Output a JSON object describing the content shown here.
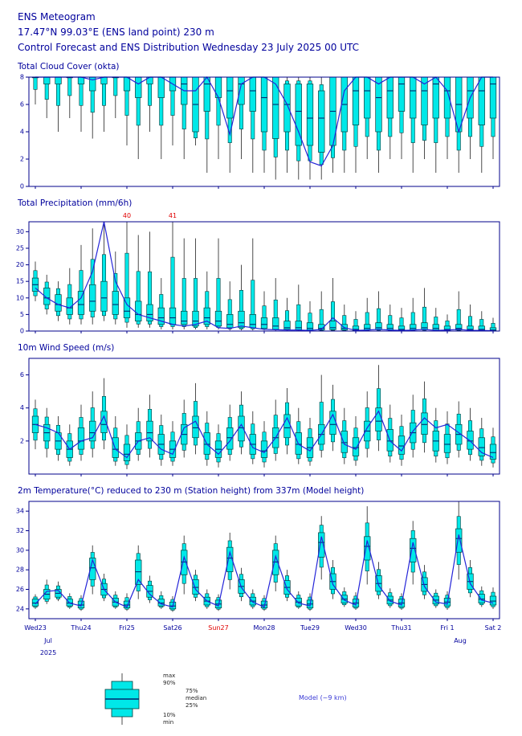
{
  "header": {
    "title": "ENS Meteogram",
    "location": "17.47°N 99.03°E (ENS land point) 230 m",
    "subtitle": "Control Forecast and ENS Distribution Wednesday 23 July 2025 00 UTC"
  },
  "x_axis": {
    "tick_labels": [
      "Wed23",
      "Thu24",
      "Fri25",
      "Sat26",
      "Sun27",
      "Mon28",
      "Tue29",
      "Wed30",
      "Thu31",
      "Fri 1",
      "Sat 2"
    ],
    "tick_steps": [
      0,
      4,
      8,
      12,
      16,
      20,
      24,
      28,
      32,
      36,
      40
    ],
    "red_labels": [
      "Sun27"
    ],
    "month_labels": [
      {
        "text": "Jul",
        "step": 0
      },
      {
        "text": "Aug",
        "step": 36
      }
    ],
    "year_label": "2025"
  },
  "legend": {
    "labels": {
      "max": "max",
      "p90": "90%",
      "p75": "75%",
      "median": "median",
      "p25": "25%",
      "p10": "10%",
      "min": "min"
    },
    "model_label": "Model (~9 km)"
  },
  "colors": {
    "title_text": "#00009c",
    "frame": "#00008b",
    "box_fill": "#00e8e8",
    "box_stroke": "#063e3e",
    "median": "#00286e",
    "whisker": "#4d4d4d",
    "control_line": "#2424d8",
    "annotation": "#e00000",
    "model_label": "#3a3ad6"
  },
  "chart_data": [
    {
      "type": "box-line",
      "title": "Total Cloud Cover (okta)",
      "ylabel": "okta",
      "ylim": [
        0,
        8
      ],
      "yticks": [
        0,
        2,
        4,
        6,
        8
      ],
      "top_margin": 6,
      "boxes": [
        [
          6,
          8,
          8,
          8,
          8
        ],
        [
          5,
          7.5,
          8,
          8,
          8
        ],
        [
          4,
          7.5,
          8,
          8,
          8
        ],
        [
          5,
          8,
          8,
          8,
          8
        ],
        [
          4,
          7.5,
          8,
          8,
          8
        ],
        [
          3.5,
          7,
          8,
          8,
          8
        ],
        [
          4,
          7.5,
          8,
          8,
          8
        ],
        [
          5,
          8,
          8,
          8,
          8
        ],
        [
          3,
          7,
          8,
          8,
          8
        ],
        [
          2,
          6.5,
          8,
          8,
          8
        ],
        [
          4,
          7.5,
          8,
          8,
          8
        ],
        [
          2,
          6.5,
          8,
          8,
          8
        ],
        [
          3,
          7,
          8,
          8,
          8
        ],
        [
          2,
          6,
          7.5,
          8,
          8
        ],
        [
          3,
          4,
          6,
          8,
          8
        ],
        [
          1,
          5.5,
          7.5,
          8,
          8
        ],
        [
          2,
          6.5,
          8,
          8,
          8
        ],
        [
          1,
          5,
          7,
          8,
          8
        ],
        [
          2,
          6,
          7.5,
          8,
          8
        ],
        [
          1,
          5.5,
          7,
          8,
          8
        ],
        [
          1,
          4,
          6.5,
          8,
          8
        ],
        [
          0.5,
          3.5,
          6,
          8,
          8
        ],
        [
          1,
          4,
          6,
          7.5,
          8
        ],
        [
          0.5,
          3,
          5.5,
          7.5,
          8
        ],
        [
          0.5,
          3,
          5,
          7.5,
          8
        ],
        [
          0.5,
          2.5,
          5,
          7,
          8
        ],
        [
          1,
          3,
          5.5,
          8,
          8
        ],
        [
          1,
          4,
          6,
          8,
          8
        ],
        [
          1,
          4.5,
          7,
          8,
          8
        ],
        [
          2,
          5,
          7,
          8,
          8
        ],
        [
          1,
          4,
          6.5,
          8,
          8
        ],
        [
          2,
          5,
          7,
          8,
          8
        ],
        [
          2,
          5.5,
          7.5,
          8,
          8
        ],
        [
          1,
          5,
          7,
          8,
          8
        ],
        [
          2,
          4.5,
          7,
          8,
          8
        ],
        [
          1,
          5,
          7.5,
          8,
          8
        ],
        [
          2,
          5,
          7,
          8,
          8
        ],
        [
          1,
          4,
          6,
          8,
          8
        ],
        [
          2,
          5,
          7,
          8,
          8
        ],
        [
          1,
          4.5,
          7,
          8,
          8
        ],
        [
          2,
          5,
          7.5,
          8,
          8
        ]
      ],
      "control": [
        8,
        8,
        8,
        8,
        8,
        7.8,
        8,
        8,
        8,
        7.5,
        8,
        8,
        7.5,
        7,
        7,
        8,
        6.5,
        3.8,
        7.5,
        8,
        8,
        7.5,
        6,
        4,
        1.8,
        1.5,
        3,
        7,
        8,
        8,
        7.5,
        8,
        8,
        8,
        7.5,
        8,
        7,
        4,
        6.5,
        8,
        8
      ],
      "annotations": []
    },
    {
      "type": "box-line",
      "title": "Total Precipitation (mm/6h)",
      "ylabel": "mm/6h",
      "ylim": [
        0,
        33
      ],
      "yticks": [
        0,
        5,
        10,
        15,
        20,
        25,
        30
      ],
      "top_margin": 16,
      "boxes": [
        [
          9,
          12,
          14,
          16,
          21
        ],
        [
          5,
          8,
          10,
          13,
          17
        ],
        [
          3,
          6,
          8,
          11,
          15
        ],
        [
          2,
          5,
          7,
          10,
          19
        ],
        [
          2,
          5,
          8,
          12,
          26
        ],
        [
          2,
          6,
          9,
          14,
          31
        ],
        [
          3,
          6,
          10,
          15,
          33
        ],
        [
          2,
          5,
          8,
          12,
          24
        ],
        [
          1,
          4,
          6,
          10,
          40
        ],
        [
          1,
          3,
          5,
          9,
          29
        ],
        [
          1,
          3,
          5,
          8,
          30
        ],
        [
          0.5,
          2,
          4,
          7,
          16
        ],
        [
          0.5,
          2,
          4,
          7,
          41
        ],
        [
          0.5,
          2,
          3,
          6,
          28
        ],
        [
          0.5,
          1.5,
          3,
          6,
          28
        ],
        [
          0.5,
          2,
          4,
          7,
          18
        ],
        [
          0.5,
          1.5,
          3,
          6,
          28
        ],
        [
          0.2,
          1,
          2,
          5,
          15
        ],
        [
          0.2,
          1,
          2.5,
          6,
          20
        ],
        [
          0.2,
          1,
          2,
          5,
          28
        ],
        [
          0.2,
          0.8,
          2,
          4,
          12
        ],
        [
          0.1,
          0.5,
          1.5,
          4,
          16
        ],
        [
          0.1,
          0.5,
          1,
          3,
          10
        ],
        [
          0.1,
          0.4,
          1,
          3,
          14
        ],
        [
          0,
          0.3,
          0.8,
          2.5,
          9
        ],
        [
          0,
          0.3,
          0.8,
          2,
          12
        ],
        [
          0,
          0.4,
          1,
          3,
          16
        ],
        [
          0,
          0.3,
          0.8,
          2,
          8
        ],
        [
          0,
          0.2,
          0.5,
          1.5,
          6
        ],
        [
          0,
          0.3,
          0.8,
          2,
          10
        ],
        [
          0,
          0.4,
          1,
          2.5,
          12
        ],
        [
          0,
          0.3,
          0.8,
          2,
          8
        ],
        [
          0,
          0.2,
          0.5,
          1.5,
          7
        ],
        [
          0,
          0.3,
          0.8,
          2,
          10
        ],
        [
          0,
          0.4,
          1,
          2.5,
          13
        ],
        [
          0,
          0.3,
          0.8,
          2,
          7
        ],
        [
          0,
          0.2,
          0.5,
          1.5,
          5
        ],
        [
          0,
          0.3,
          0.8,
          2,
          12
        ],
        [
          0,
          0.2,
          0.5,
          1.5,
          8
        ],
        [
          0,
          0.2,
          0.5,
          1.5,
          6
        ],
        [
          0,
          0.1,
          0.3,
          1,
          4
        ]
      ],
      "control": [
        13,
        10,
        8,
        7,
        10,
        18,
        33,
        15,
        8,
        5,
        4,
        3,
        2,
        1.5,
        2,
        3,
        1,
        0.8,
        1.5,
        1,
        0.5,
        0.4,
        0.3,
        0.3,
        0.2,
        0.5,
        4,
        1,
        0.2,
        0.3,
        0.5,
        0.3,
        0.2,
        0.3,
        0.5,
        0.2,
        0.3,
        0.5,
        0.2,
        0.2,
        0.1
      ],
      "annotations": [
        {
          "step": 8,
          "text": "40"
        },
        {
          "step": 12,
          "text": "41"
        }
      ]
    },
    {
      "type": "box-line",
      "title": "10m Wind Speed (m/s)",
      "ylabel": "m/s",
      "ylim": [
        0,
        7
      ],
      "yticks": [
        2,
        4,
        6
      ],
      "top_margin": 6,
      "boxes": [
        [
          1.5,
          2.5,
          3,
          3.5,
          4.5
        ],
        [
          1,
          2,
          2.5,
          3,
          4
        ],
        [
          0.8,
          1.5,
          2,
          2.5,
          3.5
        ],
        [
          0.5,
          1,
          1.5,
          2,
          3
        ],
        [
          0.8,
          1.5,
          2,
          2.8,
          4.2
        ],
        [
          1,
          2,
          2.5,
          3.2,
          5
        ],
        [
          1.5,
          2.5,
          3,
          3.8,
          5.8
        ],
        [
          0.5,
          1,
          1.5,
          2.2,
          3.5
        ],
        [
          0.3,
          0.8,
          1.2,
          1.8,
          3
        ],
        [
          0.8,
          1.5,
          2,
          2.5,
          4
        ],
        [
          1,
          2,
          2.5,
          3.2,
          4.8
        ],
        [
          0.5,
          1.2,
          1.8,
          2.4,
          3.6
        ],
        [
          0.5,
          1,
          1.5,
          2,
          3.2
        ],
        [
          1,
          1.8,
          2.4,
          3,
          4.5
        ],
        [
          1.2,
          2.2,
          2.8,
          3.5,
          5.5
        ],
        [
          0.5,
          1.2,
          1.8,
          2.5,
          3.8
        ],
        [
          0.4,
          1,
          1.5,
          2,
          3
        ],
        [
          0.8,
          1.5,
          2.2,
          2.8,
          4.2
        ],
        [
          1.2,
          2,
          2.8,
          3.5,
          5
        ],
        [
          0.6,
          1.2,
          1.8,
          2.4,
          3.8
        ],
        [
          0.4,
          1,
          1.4,
          2,
          3.2
        ],
        [
          0.8,
          1.6,
          2.2,
          2.8,
          4.5
        ],
        [
          1.2,
          2.2,
          2.8,
          3.6,
          5.2
        ],
        [
          0.6,
          1.2,
          1.8,
          2.5,
          4
        ],
        [
          0.5,
          1,
          1.6,
          2.2,
          3.4
        ],
        [
          1,
          1.8,
          2.4,
          3,
          6
        ],
        [
          1.4,
          2.4,
          3,
          3.8,
          5.4
        ],
        [
          0.6,
          1.3,
          1.9,
          2.6,
          4
        ],
        [
          0.5,
          1.1,
          1.6,
          2.2,
          3.5
        ],
        [
          1,
          2,
          2.6,
          3.2,
          5
        ],
        [
          1.4,
          2.6,
          3.2,
          4,
          6.6
        ],
        [
          0.7,
          1.4,
          2,
          2.7,
          4.2
        ],
        [
          0.5,
          1.2,
          1.7,
          2.3,
          3.6
        ],
        [
          1,
          1.9,
          2.5,
          3.1,
          4.8
        ],
        [
          1.3,
          2.4,
          3,
          3.7,
          5.6
        ],
        [
          0.7,
          1.4,
          2,
          2.6,
          4
        ],
        [
          0.6,
          1.3,
          1.8,
          2.4,
          3.8
        ],
        [
          1,
          1.8,
          2.4,
          3,
          4.4
        ],
        [
          0.8,
          1.5,
          2,
          2.6,
          4
        ],
        [
          0.5,
          1.1,
          1.6,
          2.2,
          3.4
        ],
        [
          0.4,
          0.9,
          1.3,
          1.8,
          2.8
        ]
      ],
      "control": [
        3,
        2.8,
        2.5,
        1.5,
        2,
        2.2,
        3.5,
        1.5,
        1,
        2,
        2.2,
        1.5,
        1.2,
        2.8,
        3.2,
        1.8,
        1.2,
        2,
        3,
        1.6,
        1.3,
        2.2,
        3.4,
        1.8,
        1.4,
        2.4,
        3.6,
        1.8,
        1.5,
        2.8,
        3.8,
        2,
        1.4,
        2.6,
        3.4,
        2.8,
        3,
        2.5,
        2,
        1.3,
        1
      ],
      "annotations": []
    },
    {
      "type": "box-line",
      "title": "2m Temperature(°C) reduced to 230 m (Station height) from 337m (Model height)",
      "ylabel": "°C",
      "ylim": [
        23,
        35
      ],
      "yticks": [
        24,
        26,
        28,
        30,
        32,
        34
      ],
      "top_margin": 6,
      "boxes": [
        [
          24,
          24.3,
          24.6,
          25,
          25.5
        ],
        [
          24.5,
          25,
          25.5,
          26,
          27
        ],
        [
          24.8,
          25.2,
          25.6,
          26,
          26.8
        ],
        [
          24,
          24.3,
          24.6,
          25,
          25.6
        ],
        [
          23.8,
          24.1,
          24.4,
          24.8,
          25.4
        ],
        [
          25.5,
          27,
          28.2,
          29.2,
          30.5
        ],
        [
          24.8,
          25.4,
          26,
          26.6,
          27.6
        ],
        [
          24,
          24.3,
          24.7,
          25.1,
          25.8
        ],
        [
          23.8,
          24.1,
          24.4,
          24.8,
          25.6
        ],
        [
          25,
          26.5,
          27.8,
          29,
          30.5
        ],
        [
          24.6,
          25.2,
          25.8,
          26.4,
          27.4
        ],
        [
          24,
          24.3,
          24.6,
          25,
          25.8
        ],
        [
          23.7,
          24,
          24.3,
          24.7,
          25.3
        ],
        [
          25.5,
          27.5,
          28.8,
          30,
          31.5
        ],
        [
          24.8,
          25.5,
          26.2,
          27,
          28
        ],
        [
          24,
          24.4,
          24.8,
          25.2,
          26
        ],
        [
          23.8,
          24.1,
          24.5,
          24.9,
          25.5
        ],
        [
          26,
          27.8,
          29.2,
          30.3,
          31.8
        ],
        [
          24.8,
          25.6,
          26.3,
          27,
          28.2
        ],
        [
          24,
          24.4,
          24.8,
          25.2,
          26
        ],
        [
          23.8,
          24.1,
          24.4,
          24.8,
          25.4
        ],
        [
          25.8,
          27.5,
          28.8,
          30,
          31.5
        ],
        [
          24.8,
          25.5,
          26.2,
          26.9,
          28
        ],
        [
          24,
          24.3,
          24.7,
          25.1,
          25.8
        ],
        [
          23.8,
          24.1,
          24.5,
          24.9,
          25.6
        ],
        [
          27,
          29.3,
          30.8,
          31.8,
          33.5
        ],
        [
          25,
          26,
          26.8,
          27.6,
          29
        ],
        [
          24.2,
          24.6,
          25,
          25.4,
          26.2
        ],
        [
          23.9,
          24.2,
          24.6,
          25,
          25.7
        ],
        [
          26.5,
          29,
          30.4,
          31.4,
          34.5
        ],
        [
          25,
          25.8,
          26.6,
          27.4,
          28.8
        ],
        [
          24.1,
          24.5,
          24.9,
          25.3,
          26.1
        ],
        [
          23.9,
          24.2,
          24.6,
          25,
          25.6
        ],
        [
          26.5,
          28.8,
          30.2,
          31.2,
          33
        ],
        [
          25,
          25.8,
          26.5,
          27.2,
          28.5
        ],
        [
          24.1,
          24.5,
          24.9,
          25.3,
          26
        ],
        [
          23.9,
          24.3,
          24.7,
          25.1,
          25.8
        ],
        [
          27,
          29.8,
          31.2,
          32.2,
          35
        ],
        [
          25.2,
          26,
          26.8,
          27.6,
          29
        ],
        [
          24.2,
          24.6,
          25,
          25.5,
          26.3
        ],
        [
          24,
          24.4,
          24.8,
          25.3,
          26.2
        ]
      ],
      "control": [
        24.5,
        25.8,
        25.9,
        24.6,
        24.3,
        29,
        26,
        24.7,
        24.2,
        27,
        25.5,
        24.5,
        24.2,
        29.3,
        26,
        24.8,
        24.3,
        29.8,
        26.2,
        24.7,
        24.2,
        29.4,
        26,
        24.6,
        24.3,
        31.4,
        26.5,
        24.9,
        24.4,
        31,
        26.4,
        24.8,
        24.4,
        30.8,
        26.3,
        24.7,
        24.5,
        31.6,
        26.6,
        24.9,
        24.6
      ],
      "annotations": []
    }
  ]
}
